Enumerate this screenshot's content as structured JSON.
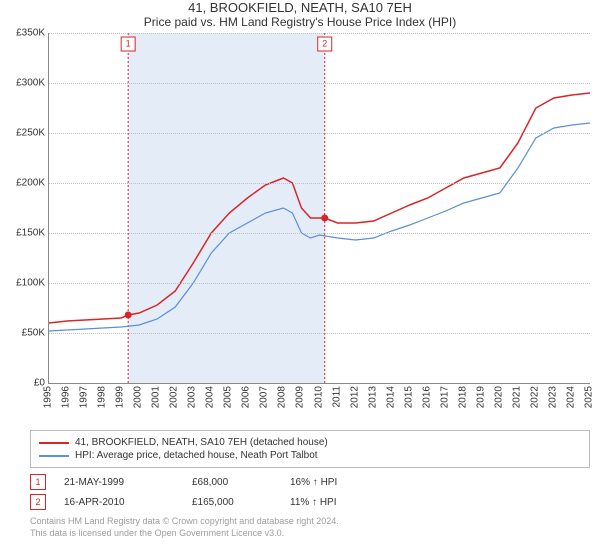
{
  "title": "41, BROOKFIELD, NEATH, SA10 7EH",
  "subtitle": "Price paid vs. HM Land Registry's House Price Index (HPI)",
  "chart": {
    "type": "line",
    "x_years": [
      1995,
      1996,
      1997,
      1998,
      1999,
      2000,
      2001,
      2002,
      2003,
      2004,
      2005,
      2006,
      2007,
      2008,
      2009,
      2010,
      2011,
      2012,
      2013,
      2014,
      2015,
      2016,
      2017,
      2018,
      2019,
      2020,
      2021,
      2022,
      2023,
      2024,
      2025
    ],
    "xlim": [
      1995,
      2025
    ],
    "ylim": [
      0,
      350000
    ],
    "ytick_step": 50000,
    "ylabel_prefix": "£",
    "ylabel_suffix": "K",
    "background_color": "#ffffff",
    "grid_color": "#c0c0c0",
    "axis_color": "#888888",
    "band": {
      "start": 1999.39,
      "end": 2010.29,
      "color": "#e3ecf7"
    },
    "title_fontsize": 13,
    "label_fontsize": 10,
    "series": [
      {
        "name": "price_paid",
        "label": "41, BROOKFIELD, NEATH, SA10 7EH (detached house)",
        "color": "#d62728",
        "width": 1.5,
        "points": [
          [
            1995,
            60000
          ],
          [
            1996,
            62000
          ],
          [
            1997,
            63000
          ],
          [
            1998,
            64000
          ],
          [
            1999,
            65000
          ],
          [
            1999.39,
            68000
          ],
          [
            2000,
            70000
          ],
          [
            2001,
            78000
          ],
          [
            2002,
            92000
          ],
          [
            2003,
            120000
          ],
          [
            2004,
            150000
          ],
          [
            2005,
            170000
          ],
          [
            2006,
            185000
          ],
          [
            2007,
            198000
          ],
          [
            2008,
            205000
          ],
          [
            2008.5,
            200000
          ],
          [
            2009,
            175000
          ],
          [
            2009.5,
            165000
          ],
          [
            2010,
            165000
          ],
          [
            2010.29,
            165000
          ],
          [
            2011,
            160000
          ],
          [
            2012,
            160000
          ],
          [
            2013,
            162000
          ],
          [
            2014,
            170000
          ],
          [
            2015,
            178000
          ],
          [
            2016,
            185000
          ],
          [
            2017,
            195000
          ],
          [
            2018,
            205000
          ],
          [
            2019,
            210000
          ],
          [
            2020,
            215000
          ],
          [
            2021,
            240000
          ],
          [
            2022,
            275000
          ],
          [
            2023,
            285000
          ],
          [
            2024,
            288000
          ],
          [
            2025,
            290000
          ]
        ]
      },
      {
        "name": "hpi",
        "label": "HPI: Average price, detached house, Neath Port Talbot",
        "color": "#5b8fd6",
        "width": 1.2,
        "points": [
          [
            1995,
            52000
          ],
          [
            1996,
            53000
          ],
          [
            1997,
            54000
          ],
          [
            1998,
            55000
          ],
          [
            1999,
            56000
          ],
          [
            2000,
            58000
          ],
          [
            2001,
            64000
          ],
          [
            2002,
            76000
          ],
          [
            2003,
            100000
          ],
          [
            2004,
            130000
          ],
          [
            2005,
            150000
          ],
          [
            2006,
            160000
          ],
          [
            2007,
            170000
          ],
          [
            2008,
            175000
          ],
          [
            2008.5,
            170000
          ],
          [
            2009,
            150000
          ],
          [
            2009.5,
            145000
          ],
          [
            2010,
            148000
          ],
          [
            2011,
            145000
          ],
          [
            2012,
            143000
          ],
          [
            2013,
            145000
          ],
          [
            2014,
            152000
          ],
          [
            2015,
            158000
          ],
          [
            2016,
            165000
          ],
          [
            2017,
            172000
          ],
          [
            2018,
            180000
          ],
          [
            2019,
            185000
          ],
          [
            2020,
            190000
          ],
          [
            2021,
            215000
          ],
          [
            2022,
            245000
          ],
          [
            2023,
            255000
          ],
          [
            2024,
            258000
          ],
          [
            2025,
            260000
          ]
        ]
      }
    ],
    "sales_markers": [
      {
        "n": "1",
        "x": 1999.39,
        "y": 68000,
        "color": "#d62728"
      },
      {
        "n": "2",
        "x": 2010.29,
        "y": 165000,
        "color": "#d62728"
      }
    ]
  },
  "legend": {
    "items": [
      {
        "color": "#d62728",
        "label": "41, BROOKFIELD, NEATH, SA10 7EH (detached house)"
      },
      {
        "color": "#5b8fd6",
        "label": "HPI: Average price, detached house, Neath Port Talbot"
      }
    ]
  },
  "sales_table": {
    "rows": [
      {
        "n": "1",
        "color": "#d62728",
        "date": "21-MAY-1999",
        "price": "£68,000",
        "hpi": "16% ↑ HPI"
      },
      {
        "n": "2",
        "color": "#d62728",
        "date": "16-APR-2010",
        "price": "£165,000",
        "hpi": "11% ↑ HPI"
      }
    ]
  },
  "footer_line1": "Contains HM Land Registry data © Crown copyright and database right 2024.",
  "footer_line2": "This data is licensed under the Open Government Licence v3.0."
}
